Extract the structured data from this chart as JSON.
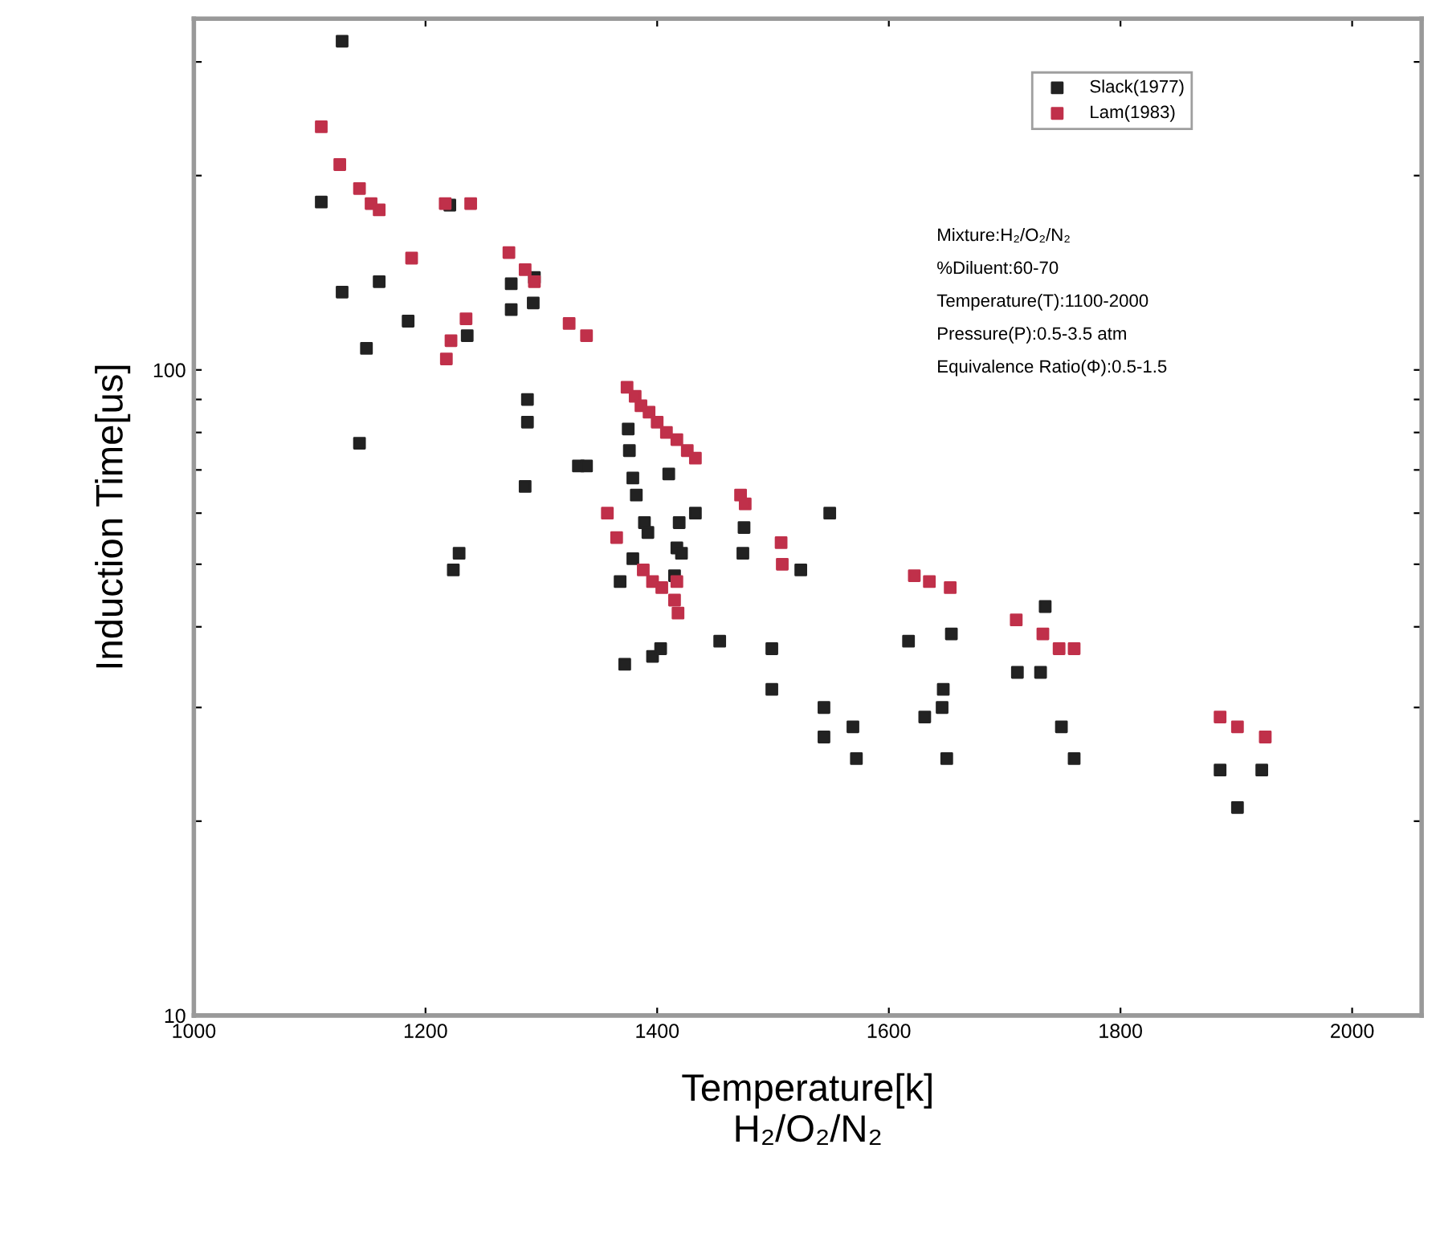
{
  "chart_data": {
    "type": "scatter",
    "xlabel": "Temperature[k]\nH₂/O₂/N₂",
    "ylabel": "Induction Time[us]",
    "xlim": [
      1000,
      2060
    ],
    "xticks": [
      1000,
      1200,
      1400,
      1600,
      1800,
      2000
    ],
    "ylim": [
      10,
      350
    ],
    "yticks": [
      10,
      {
        "value": 20,
        "label": null
      },
      {
        "value": 30,
        "label": null
      },
      {
        "value": 40,
        "label": null
      },
      {
        "value": 50,
        "label": null
      },
      {
        "value": 60,
        "label": null
      },
      {
        "value": 70,
        "label": null
      },
      {
        "value": 80,
        "label": null
      },
      {
        "value": 90,
        "label": null
      },
      100,
      {
        "value": 200,
        "label": null
      },
      {
        "value": 300,
        "label": null
      }
    ],
    "log": true,
    "grid": false,
    "legend": "top right",
    "marker": "square",
    "series": [
      {
        "name": "Slack(1977)",
        "color": "#222222",
        "x": [
          1128,
          1110,
          1128,
          1160,
          1185,
          1149,
          1143,
          1221,
          1236,
          1274,
          1274,
          1293,
          1294,
          1288,
          1288,
          1286,
          1332,
          1339,
          1224,
          1229,
          1375,
          1376,
          1379,
          1382,
          1389,
          1379,
          1392,
          1368,
          1372,
          1396,
          1403,
          1417,
          1421,
          1419,
          1433,
          1410,
          1415,
          1454,
          1474,
          1475,
          1499,
          1499,
          1524,
          1549,
          1544,
          1544,
          1569,
          1572,
          1617,
          1631,
          1647,
          1646,
          1650,
          1654,
          1711,
          1731,
          1735,
          1749,
          1760,
          1886,
          1901,
          1922
        ],
        "values": [
          323,
          182,
          132,
          137,
          119,
          108,
          77,
          180,
          113,
          124,
          136,
          127,
          139,
          90,
          83,
          66,
          71,
          71,
          49,
          52,
          81,
          75,
          68,
          64,
          58,
          51,
          56,
          47,
          35,
          36,
          37,
          53,
          52,
          58,
          60,
          69,
          48,
          38,
          52,
          57,
          37,
          32,
          49,
          60,
          30,
          27,
          28,
          25,
          38,
          29,
          32,
          30,
          25,
          39,
          34,
          34,
          43,
          28,
          25,
          24,
          21,
          24
        ]
      },
      {
        "name": "Lam(1983)",
        "color": "#c0304a",
        "x": [
          1110,
          1126,
          1143,
          1153,
          1160,
          1188,
          1217,
          1239,
          1218,
          1222,
          1235,
          1272,
          1286,
          1294,
          1324,
          1339,
          1357,
          1374,
          1381,
          1386,
          1393,
          1400,
          1408,
          1417,
          1426,
          1433,
          1365,
          1388,
          1396,
          1404,
          1415,
          1418,
          1417,
          1472,
          1476,
          1507,
          1508,
          1622,
          1635,
          1653,
          1710,
          1733,
          1747,
          1760,
          1886,
          1901,
          1925
        ],
        "values": [
          238,
          208,
          191,
          181,
          177,
          149,
          181,
          181,
          104,
          111,
          120,
          152,
          143,
          137,
          118,
          113,
          60,
          94,
          91,
          88,
          86,
          83,
          80,
          78,
          75,
          73,
          55,
          49,
          47,
          46,
          44,
          42,
          47,
          64,
          62,
          54,
          50,
          48,
          47,
          46,
          41,
          39,
          37,
          37,
          29,
          28,
          27
        ]
      }
    ],
    "annotations": [
      "Mixture:H₂/O₂/N₂",
      "%Diluent:60-70",
      "Temperature(T):1100-2000",
      "Pressure(P):0.5-3.5 atm",
      "Equivalence Ratio(Φ):0.5-1.5"
    ]
  }
}
